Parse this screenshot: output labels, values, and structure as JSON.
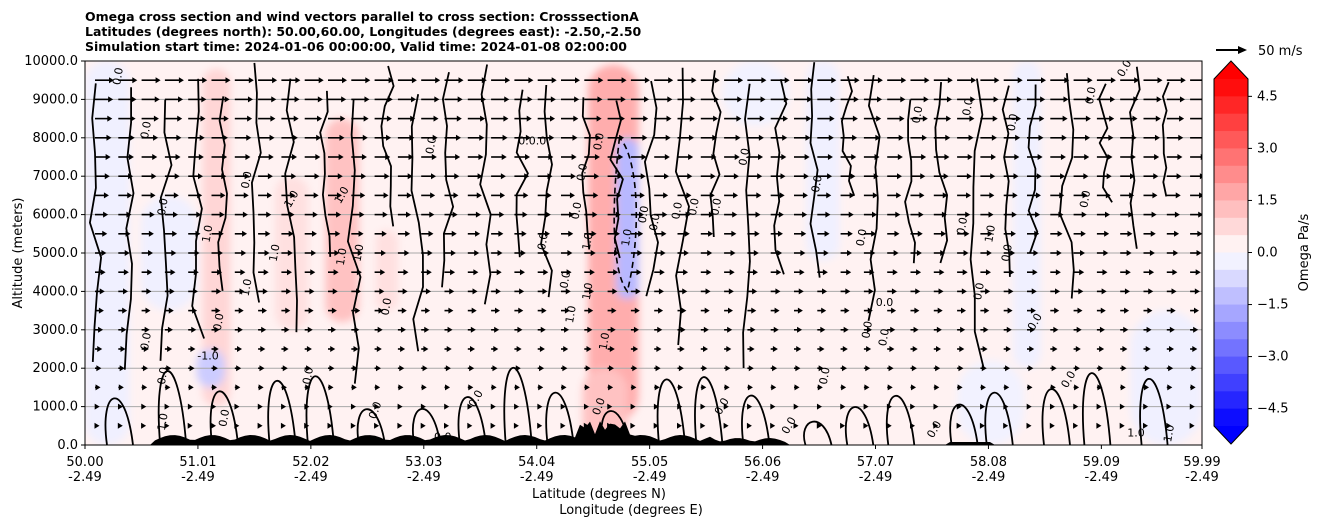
{
  "title_lines": [
    "Omega cross section and wind vectors parallel to cross section: CrosssectionA",
    "Latitudes (degrees north): 50.00,60.00, Longitudes (degrees east): -2.50,-2.50",
    "Simulation start time: 2024-01-06 00:00:00, Valid time: 2024-01-08 02:00:00"
  ],
  "chart_data": {
    "type": "heatmap",
    "ylabel": "Altitude (meters)",
    "xlabel_1": "Latitude (degrees N)",
    "xlabel_2": "Longitude (degrees E)",
    "ylim": [
      0,
      10000
    ],
    "yticks": [
      "0.0",
      "1000.0",
      "2000.0",
      "3000.0",
      "4000.0",
      "5000.0",
      "6000.0",
      "7000.0",
      "8000.0",
      "9000.0",
      "10000.0"
    ],
    "ytick_values": [
      0,
      1000,
      2000,
      3000,
      4000,
      5000,
      6000,
      7000,
      8000,
      9000,
      10000
    ],
    "xlim": [
      50.0,
      59.99
    ],
    "xtick_values": [
      50.0,
      51.01,
      52.02,
      53.03,
      54.04,
      55.05,
      56.06,
      57.07,
      58.08,
      59.09,
      59.99
    ],
    "xticks_lat": [
      "50.00",
      "51.01",
      "52.02",
      "53.03",
      "54.04",
      "55.05",
      "56.06",
      "57.07",
      "58.08",
      "59.09",
      "59.99"
    ],
    "xticks_lon": [
      "-2.49",
      "-2.49",
      "-2.49",
      "-2.49",
      "-2.49",
      "-2.49",
      "-2.49",
      "-2.49",
      "-2.49",
      "-2.49",
      "-2.49"
    ],
    "grid": "horizontal",
    "colorbar": {
      "label": "Omega Pa/s",
      "range": [
        -5.0,
        5.0
      ],
      "tick_values": [
        4.5,
        3.0,
        1.5,
        0.0,
        -1.5,
        -3.0,
        -4.5
      ],
      "tick_labels": [
        "4.5",
        "3.0",
        "1.5",
        "0.0",
        "−1.5",
        "−3.0",
        "−4.5"
      ],
      "low_color": "#0000ff",
      "mid_color": "#ffffff",
      "high_color": "#ff0000"
    },
    "quiver_key": "50 m/s",
    "vector_direction": "east",
    "regions": [
      {
        "x": [
          50.0,
          50.4
        ],
        "y": [
          0,
          10000
        ],
        "omega": -0.3
      },
      {
        "x": [
          50.5,
          51.0
        ],
        "y": [
          3500,
          6500
        ],
        "omega": -0.3
      },
      {
        "x": [
          51.05,
          51.3
        ],
        "y": [
          1000,
          9800
        ],
        "omega": 0.8
      },
      {
        "x": [
          51.7,
          52.0
        ],
        "y": [
          3000,
          7000
        ],
        "omega": 0.6
      },
      {
        "x": [
          52.15,
          52.45
        ],
        "y": [
          3200,
          8500
        ],
        "omega": 1.2
      },
      {
        "x": [
          52.6,
          52.8
        ],
        "y": [
          3500,
          5600
        ],
        "omega": 0.6
      },
      {
        "x": [
          54.5,
          54.95
        ],
        "y": [
          600,
          9900
        ],
        "omega": 1.6
      },
      {
        "x": [
          54.75,
          54.95
        ],
        "y": [
          3800,
          8000
        ],
        "omega": -1.4
      },
      {
        "x": [
          54.45,
          54.85
        ],
        "y": [
          0,
          2000
        ],
        "omega": 1.2
      },
      {
        "x": [
          55.7,
          56.3
        ],
        "y": [
          8300,
          10000
        ],
        "omega": -0.25
      },
      {
        "x": [
          56.45,
          56.75
        ],
        "y": [
          4800,
          10000
        ],
        "omega": -0.3
      },
      {
        "x": [
          58.3,
          58.55
        ],
        "y": [
          2000,
          10000
        ],
        "omega": -0.3
      },
      {
        "x": [
          59.35,
          59.99
        ],
        "y": [
          0,
          3500
        ],
        "omega": -0.3
      },
      {
        "x": [
          57.8,
          58.4
        ],
        "y": [
          0,
          2200
        ],
        "omega": -0.25
      },
      {
        "x": [
          51.0,
          51.25
        ],
        "y": [
          1500,
          2500
        ],
        "omega": -1.0
      }
    ],
    "contour_labels": [
      {
        "x": 50.3,
        "y": 9600,
        "text": "0.0",
        "rot": -80
      },
      {
        "x": 50.55,
        "y": 8200,
        "text": "0.0",
        "rot": -80
      },
      {
        "x": 50.7,
        "y": 6200,
        "text": "0.0",
        "rot": -80
      },
      {
        "x": 50.55,
        "y": 2700,
        "text": "0.0",
        "rot": -80
      },
      {
        "x": 50.7,
        "y": 1800,
        "text": "0.0",
        "rot": -80
      },
      {
        "x": 51.1,
        "y": 5500,
        "text": "1.0",
        "rot": -80
      },
      {
        "x": 51.1,
        "y": 2300,
        "text": "-1.0",
        "rot": 0
      },
      {
        "x": 51.2,
        "y": 3200,
        "text": "0.0",
        "rot": -80
      },
      {
        "x": 51.45,
        "y": 6900,
        "text": "0.0",
        "rot": -80
      },
      {
        "x": 51.45,
        "y": 4100,
        "text": "1.0",
        "rot": -80
      },
      {
        "x": 51.85,
        "y": 6400,
        "text": "1.0",
        "rot": -60
      },
      {
        "x": 51.7,
        "y": 5000,
        "text": "1.0",
        "rot": -80
      },
      {
        "x": 52.0,
        "y": 1800,
        "text": "0.0",
        "rot": -80
      },
      {
        "x": 52.3,
        "y": 6500,
        "text": "1.0",
        "rot": -60
      },
      {
        "x": 52.3,
        "y": 4900,
        "text": "1.0",
        "rot": -80
      },
      {
        "x": 52.45,
        "y": 5000,
        "text": "1.0",
        "rot": -80
      },
      {
        "x": 52.7,
        "y": 3600,
        "text": "0.0",
        "rot": -80
      },
      {
        "x": 53.1,
        "y": 7800,
        "text": "0.0",
        "rot": -80
      },
      {
        "x": 54.0,
        "y": 7900,
        "text": "0.0.0",
        "rot": 0
      },
      {
        "x": 54.45,
        "y": 7100,
        "text": "0.0",
        "rot": -80
      },
      {
        "x": 54.4,
        "y": 6100,
        "text": "0.0",
        "rot": -80
      },
      {
        "x": 54.1,
        "y": 5300,
        "text": "0.0",
        "rot": -80
      },
      {
        "x": 54.6,
        "y": 7900,
        "text": "0.0",
        "rot": -80
      },
      {
        "x": 54.3,
        "y": 4300,
        "text": "0.0",
        "rot": -80
      },
      {
        "x": 54.35,
        "y": 3400,
        "text": "1.0",
        "rot": -80
      },
      {
        "x": 54.5,
        "y": 4000,
        "text": "1.0",
        "rot": -80
      },
      {
        "x": 54.5,
        "y": 5300,
        "text": "1.0",
        "rot": -80
      },
      {
        "x": 54.65,
        "y": 2700,
        "text": "1.0",
        "rot": -80
      },
      {
        "x": 54.85,
        "y": 5400,
        "text": "1.0",
        "rot": -80
      },
      {
        "x": 55.0,
        "y": 6000,
        "text": "0.0",
        "rot": -80
      },
      {
        "x": 55.1,
        "y": 5800,
        "text": "0.0",
        "rot": -80
      },
      {
        "x": 55.3,
        "y": 6100,
        "text": "0.0",
        "rot": -80
      },
      {
        "x": 55.45,
        "y": 6200,
        "text": "0.0",
        "rot": -80
      },
      {
        "x": 55.65,
        "y": 6200,
        "text": "0.0",
        "rot": -80
      },
      {
        "x": 55.9,
        "y": 7500,
        "text": "0.0",
        "rot": -80
      },
      {
        "x": 56.55,
        "y": 6800,
        "text": "0.0",
        "rot": -80
      },
      {
        "x": 56.62,
        "y": 1800,
        "text": "0.0",
        "rot": -80
      },
      {
        "x": 56.95,
        "y": 5400,
        "text": "0.0",
        "rot": -80
      },
      {
        "x": 57.15,
        "y": 3700,
        "text": "0.0",
        "rot": 0
      },
      {
        "x": 57.0,
        "y": 3000,
        "text": "0.0",
        "rot": -80
      },
      {
        "x": 57.15,
        "y": 2800,
        "text": "0.0",
        "rot": -80
      },
      {
        "x": 57.45,
        "y": 8600,
        "text": "0.0",
        "rot": -80
      },
      {
        "x": 57.85,
        "y": 5700,
        "text": "0.0",
        "rot": -80
      },
      {
        "x": 57.9,
        "y": 8800,
        "text": "0.0",
        "rot": -80
      },
      {
        "x": 58.0,
        "y": 4000,
        "text": "0.0",
        "rot": -80
      },
      {
        "x": 58.1,
        "y": 5500,
        "text": "1.0",
        "rot": -80
      },
      {
        "x": 58.25,
        "y": 5000,
        "text": "0.0",
        "rot": -80
      },
      {
        "x": 58.3,
        "y": 8400,
        "text": "0.0",
        "rot": -80
      },
      {
        "x": 58.95,
        "y": 6400,
        "text": "0.0",
        "rot": -80
      },
      {
        "x": 58.8,
        "y": 1700,
        "text": "0.0",
        "rot": -60
      },
      {
        "x": 58.5,
        "y": 3200,
        "text": "0.0",
        "rot": -60
      },
      {
        "x": 59.0,
        "y": 9100,
        "text": "0.0",
        "rot": -80
      },
      {
        "x": 59.3,
        "y": 9800,
        "text": "0.0",
        "rot": -60
      },
      {
        "x": 59.4,
        "y": 300,
        "text": "1.0",
        "rot": 0
      },
      {
        "x": 59.7,
        "y": 300,
        "text": "1.0",
        "rot": -80
      },
      {
        "x": 50.7,
        "y": 600,
        "text": "1.0",
        "rot": -80
      },
      {
        "x": 51.25,
        "y": 700,
        "text": "0.0",
        "rot": -80
      },
      {
        "x": 52.6,
        "y": 900,
        "text": "0.0",
        "rot": -70
      },
      {
        "x": 53.2,
        "y": 200,
        "text": "0.0",
        "rot": 0
      },
      {
        "x": 53.5,
        "y": 1200,
        "text": "0.0",
        "rot": -60
      },
      {
        "x": 54.6,
        "y": 1000,
        "text": "0.0",
        "rot": -70
      },
      {
        "x": 55.7,
        "y": 1000,
        "text": "0.0",
        "rot": -60
      },
      {
        "x": 56.3,
        "y": 500,
        "text": "0.0",
        "rot": -60
      },
      {
        "x": 57.6,
        "y": 400,
        "text": "0.0",
        "rot": -60
      }
    ]
  }
}
